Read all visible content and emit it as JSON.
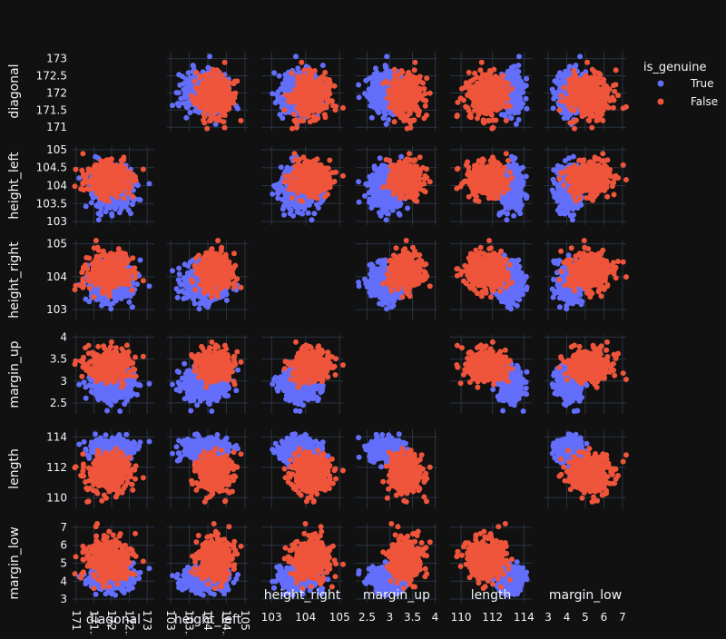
{
  "chart_data": {
    "type": "scatter",
    "subtype": "scatter-matrix",
    "title": "",
    "dimensions": [
      {
        "name": "diagonal",
        "range": [
          170.9,
          173.2
        ],
        "ticks": [
          171,
          171.5,
          172,
          172.5,
          173
        ],
        "center": 171.95,
        "spread": 0.28
      },
      {
        "name": "height_left",
        "range": [
          102.9,
          105.1
        ],
        "ticks": [
          103,
          103.5,
          104,
          104.5,
          105
        ],
        "center": 104.0,
        "spread": 0.28
      },
      {
        "name": "height_right",
        "range": [
          102.7,
          105.1
        ],
        "ticks": [
          103,
          104,
          105
        ],
        "center": 103.9,
        "spread": 0.3
      },
      {
        "name": "margin_up",
        "range": [
          2.25,
          4.05
        ],
        "ticks": [
          2.5,
          3,
          3.5,
          4
        ],
        "center": 3.15,
        "spread": 0.2
      },
      {
        "name": "length",
        "range": [
          109.3,
          114.5
        ],
        "ticks": [
          110,
          112,
          114
        ],
        "center": 112.7,
        "spread": 0.85
      },
      {
        "name": "margin_low",
        "range": [
          2.8,
          7.2
        ],
        "ticks": [
          3,
          4,
          5,
          6,
          7
        ],
        "center": 4.5,
        "spread": 0.65
      }
    ],
    "legend": {
      "title": "is_genuine",
      "position": "top-right",
      "entries": [
        {
          "name": "True",
          "color": "#636efa"
        },
        {
          "name": "False",
          "color": "#ef553b"
        }
      ]
    },
    "series": [
      {
        "name": "True",
        "color": "#636efa",
        "count": 1000,
        "means": [
          171.99,
          103.95,
          103.81,
          2.92,
          113.2,
          4.12
        ],
        "sds": [
          0.3,
          0.3,
          0.29,
          0.18,
          0.36,
          0.32
        ]
      },
      {
        "name": "False",
        "color": "#ef553b",
        "count": 500,
        "means": [
          171.9,
          104.19,
          104.14,
          3.35,
          111.63,
          5.22
        ],
        "sds": [
          0.3,
          0.22,
          0.27,
          0.18,
          0.62,
          0.55
        ]
      }
    ],
    "diagonal_cells": "empty",
    "grid": true
  }
}
